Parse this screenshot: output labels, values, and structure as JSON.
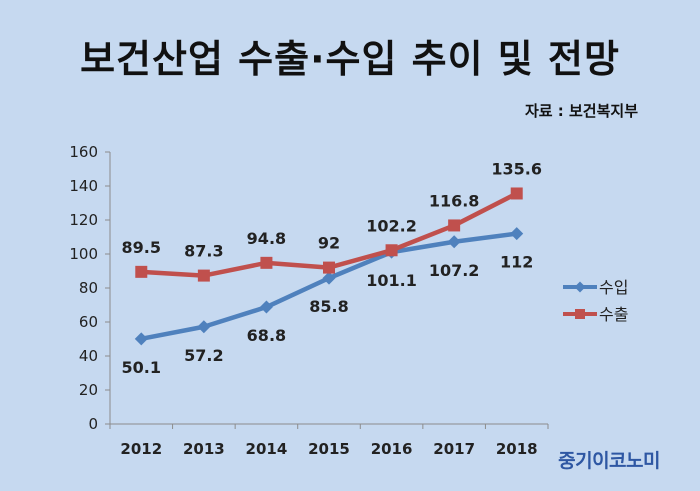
{
  "header": {
    "title": "보건산업 수출·수입 추이 및 전망",
    "source": "자료 : 보건복지부"
  },
  "brand": "중기이코노미",
  "chart_data": {
    "type": "line",
    "title": "보건산업 수출·수입 추이 및 전망",
    "xlabel": "",
    "ylabel": "",
    "categories": [
      "2012",
      "2013",
      "2014",
      "2015",
      "2016",
      "2017",
      "2018"
    ],
    "ylim": [
      0,
      160
    ],
    "yticks": [
      0,
      20,
      40,
      60,
      80,
      100,
      120,
      140,
      160
    ],
    "grid": false,
    "legend": "right",
    "series": [
      {
        "name": "수입",
        "values": [
          50.1,
          57.2,
          68.8,
          85.8,
          101.1,
          107.2,
          112
        ],
        "color": "#4f81bd",
        "marker": "diamond",
        "label_position": "below"
      },
      {
        "name": "수출",
        "values": [
          89.5,
          87.3,
          94.8,
          92,
          102.2,
          116.8,
          135.6
        ],
        "color": "#c0504d",
        "marker": "square",
        "label_position": "above"
      }
    ]
  }
}
